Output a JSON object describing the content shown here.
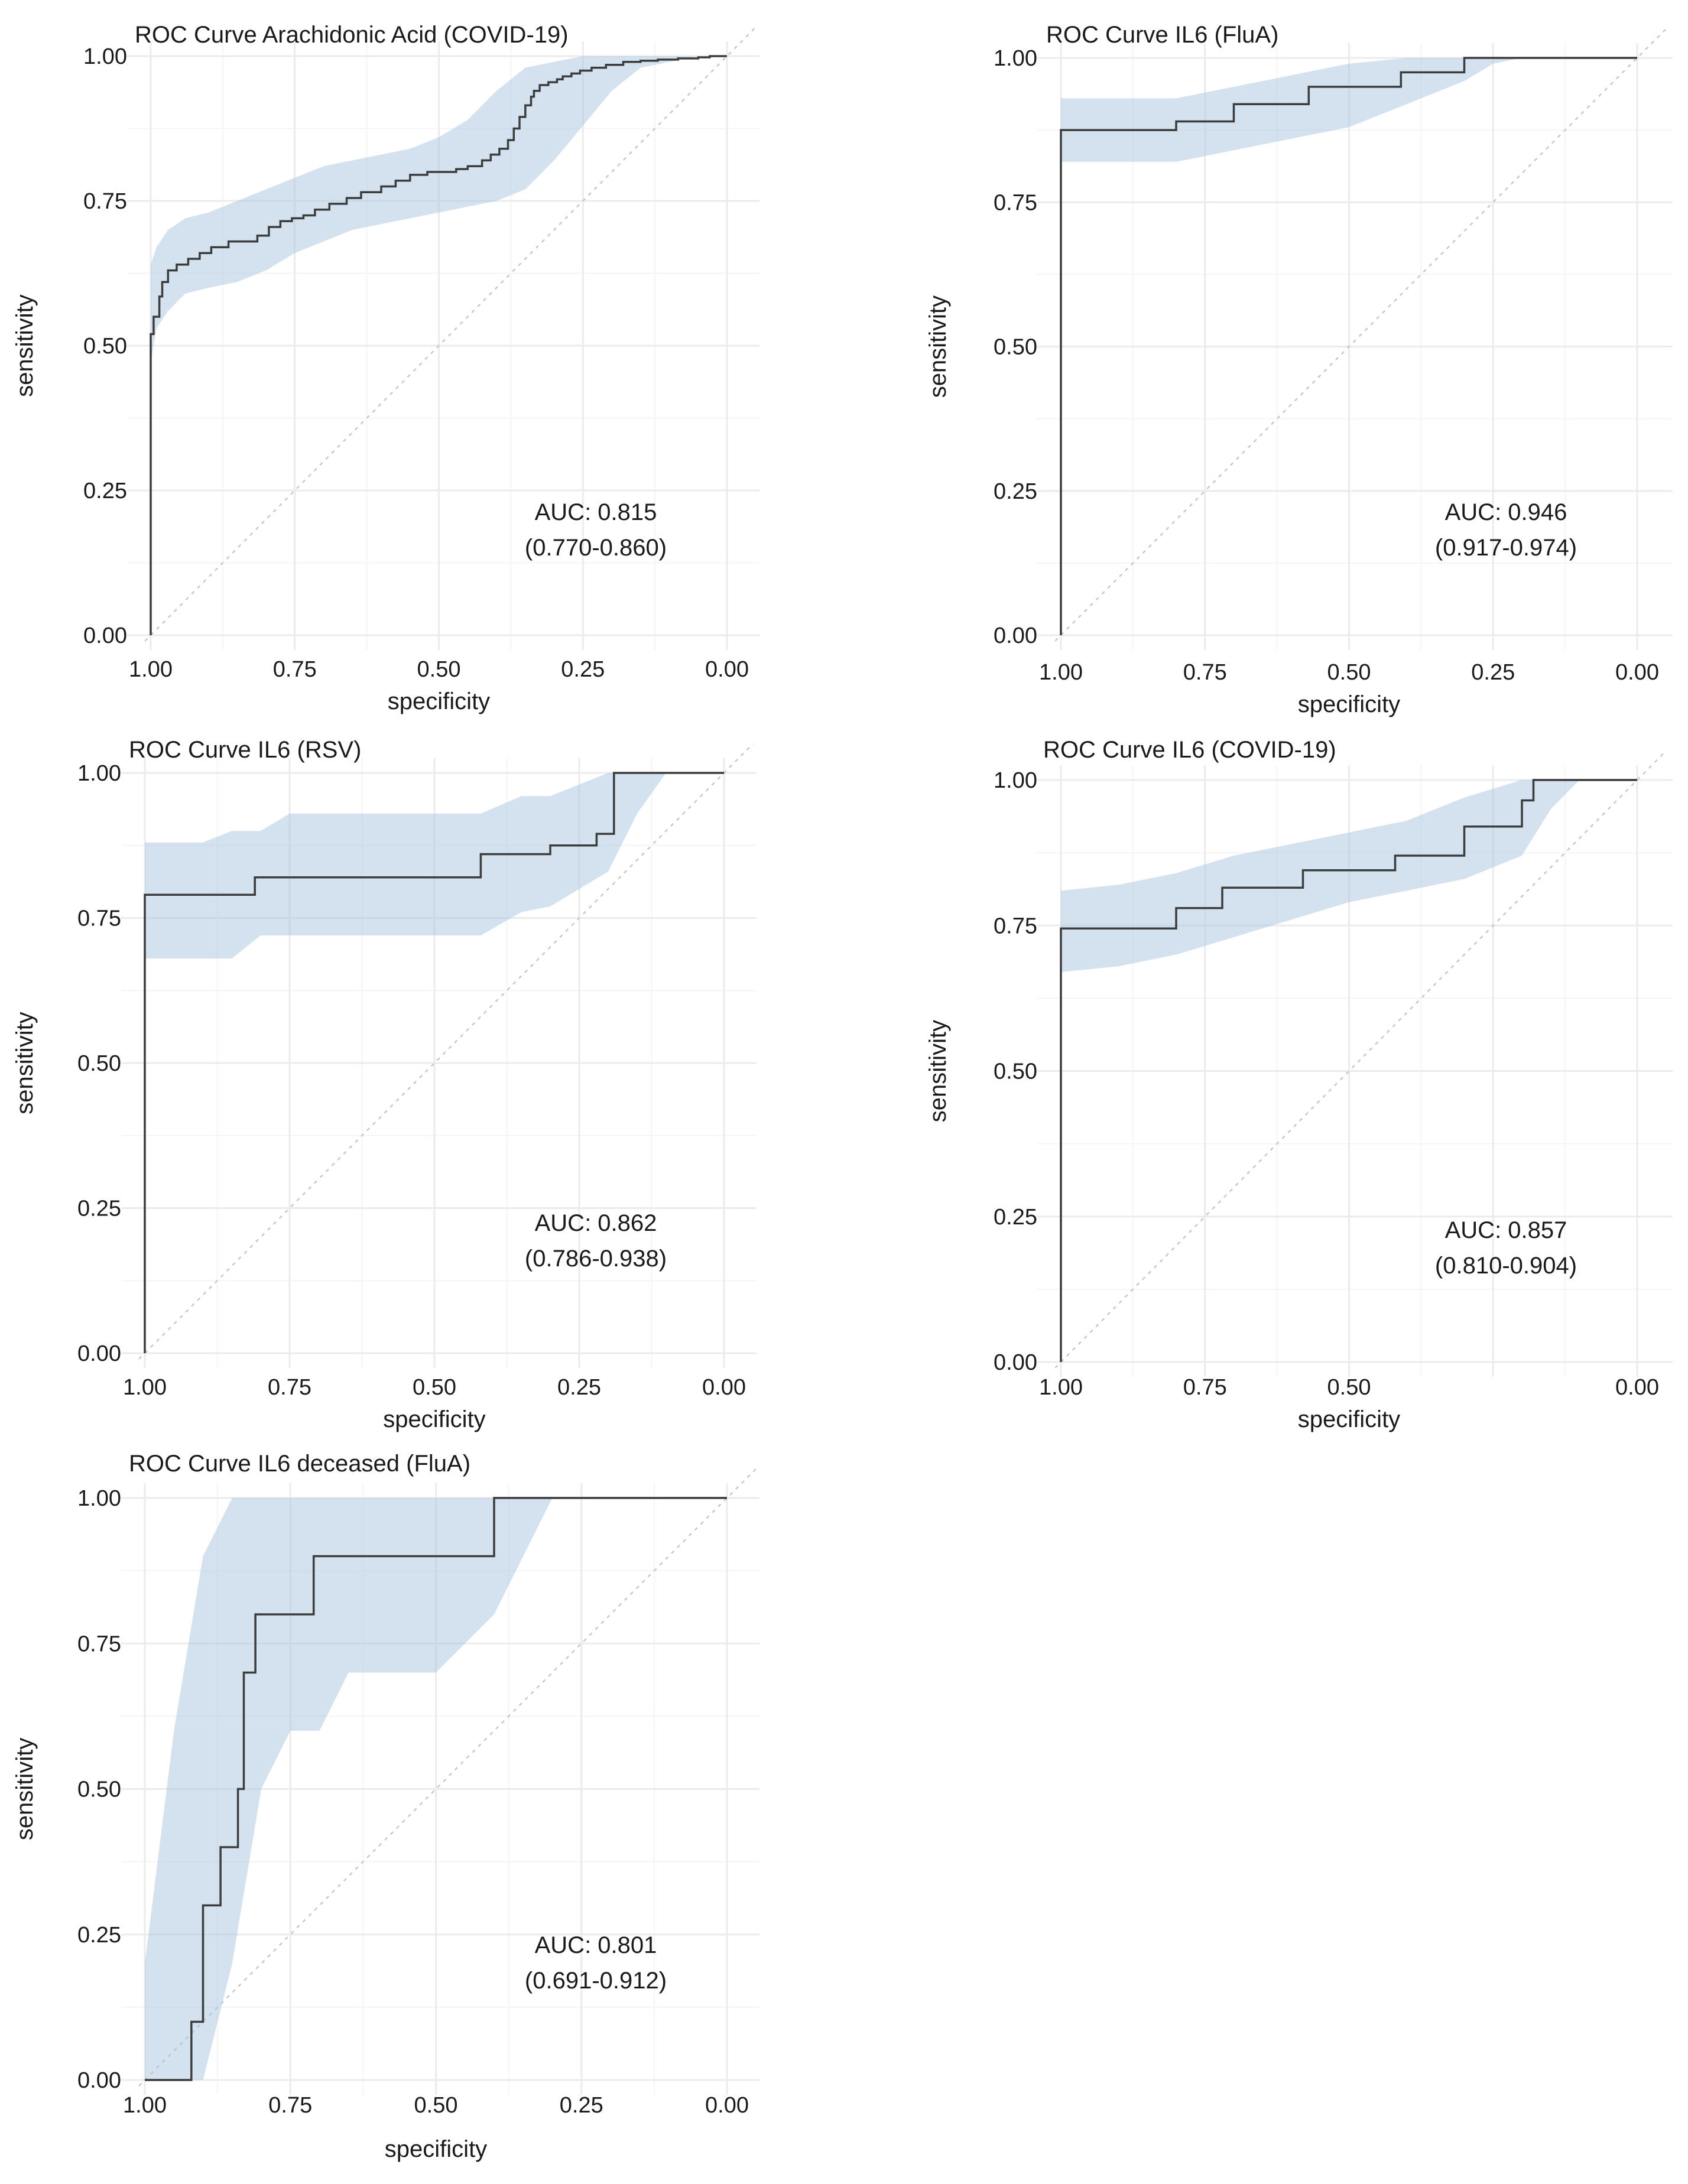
{
  "chart_data": [
    {
      "type": "line",
      "title": "ROC Curve Arachidonic  Acid (COVID-19)",
      "xlabel": "specificity",
      "ylabel": "sensitivity",
      "xlim": [
        1.0,
        0.0
      ],
      "ylim": [
        0.0,
        1.0
      ],
      "x_ticks": [
        "1.00",
        "0.75",
        "0.50",
        "0.25",
        "0.00"
      ],
      "y_ticks": [
        "0.00",
        "0.25",
        "0.50",
        "0.75",
        "1.00"
      ],
      "auc_label": "AUC: 0.815",
      "ci_label": "(0.770-0.860)",
      "roc_curve": {
        "specificity": [
          1.0,
          1.0,
          0.995,
          0.995,
          0.985,
          0.985,
          0.98,
          0.98,
          0.97,
          0.97,
          0.955,
          0.955,
          0.935,
          0.935,
          0.915,
          0.915,
          0.895,
          0.895,
          0.865,
          0.865,
          0.815,
          0.815,
          0.795,
          0.795,
          0.775,
          0.775,
          0.755,
          0.755,
          0.735,
          0.735,
          0.715,
          0.715,
          0.69,
          0.69,
          0.66,
          0.66,
          0.635,
          0.635,
          0.6,
          0.6,
          0.575,
          0.575,
          0.55,
          0.55,
          0.52,
          0.52,
          0.47,
          0.47,
          0.45,
          0.45,
          0.425,
          0.425,
          0.41,
          0.41,
          0.395,
          0.395,
          0.38,
          0.38,
          0.37,
          0.37,
          0.36,
          0.36,
          0.35,
          0.35,
          0.34,
          0.34,
          0.335,
          0.335,
          0.325,
          0.325,
          0.31,
          0.31,
          0.295,
          0.295,
          0.285,
          0.285,
          0.27,
          0.27,
          0.255,
          0.255,
          0.235,
          0.235,
          0.21,
          0.21,
          0.18,
          0.18,
          0.15,
          0.15,
          0.12,
          0.12,
          0.085,
          0.085,
          0.05,
          0.05,
          0.03,
          0.03,
          0.0
        ],
        "sensitivity": [
          0.0,
          0.52,
          0.52,
          0.55,
          0.55,
          0.585,
          0.585,
          0.61,
          0.61,
          0.63,
          0.63,
          0.64,
          0.64,
          0.65,
          0.65,
          0.66,
          0.66,
          0.67,
          0.67,
          0.68,
          0.68,
          0.69,
          0.69,
          0.705,
          0.705,
          0.715,
          0.715,
          0.72,
          0.72,
          0.725,
          0.725,
          0.735,
          0.735,
          0.745,
          0.745,
          0.755,
          0.755,
          0.765,
          0.765,
          0.775,
          0.775,
          0.785,
          0.785,
          0.795,
          0.795,
          0.8,
          0.8,
          0.805,
          0.805,
          0.81,
          0.81,
          0.82,
          0.82,
          0.83,
          0.83,
          0.84,
          0.84,
          0.855,
          0.855,
          0.875,
          0.875,
          0.895,
          0.895,
          0.915,
          0.915,
          0.93,
          0.93,
          0.94,
          0.94,
          0.95,
          0.95,
          0.955,
          0.955,
          0.96,
          0.96,
          0.965,
          0.965,
          0.97,
          0.97,
          0.975,
          0.975,
          0.98,
          0.98,
          0.985,
          0.985,
          0.99,
          0.99,
          0.992,
          0.992,
          0.994,
          0.994,
          0.996,
          0.996,
          0.998,
          0.998,
          1.0,
          1.0
        ],
        "ci_band": {
          "specificity": [
            1.0,
            0.99,
            0.97,
            0.94,
            0.9,
            0.85,
            0.8,
            0.75,
            0.7,
            0.65,
            0.6,
            0.55,
            0.5,
            0.45,
            0.4,
            0.35,
            0.3,
            0.25,
            0.2,
            0.15,
            0.1,
            0.05,
            0.0
          ],
          "lower": [
            0.47,
            0.53,
            0.56,
            0.59,
            0.6,
            0.61,
            0.63,
            0.66,
            0.68,
            0.7,
            0.71,
            0.72,
            0.73,
            0.74,
            0.75,
            0.77,
            0.82,
            0.88,
            0.94,
            0.98,
            0.99,
            1.0,
            1.0
          ],
          "upper": [
            0.64,
            0.67,
            0.7,
            0.72,
            0.73,
            0.75,
            0.77,
            0.79,
            0.81,
            0.82,
            0.83,
            0.84,
            0.86,
            0.89,
            0.94,
            0.98,
            0.99,
            1.0,
            1.0,
            1.0,
            1.0,
            1.0,
            1.0
          ]
        }
      }
    },
    {
      "type": "line",
      "title": "ROC Curve IL6 (FluA)",
      "xlabel": "specificity",
      "ylabel": "sensitivity",
      "xlim": [
        1.0,
        0.0
      ],
      "ylim": [
        0.0,
        1.0
      ],
      "x_ticks": [
        "1.00",
        "0.75",
        "0.50",
        "0.25",
        "0.00"
      ],
      "y_ticks": [
        "0.00",
        "0.25",
        "0.50",
        "0.75",
        "1.00"
      ],
      "auc_label": "AUC: 0.946",
      "ci_label": "(0.917-0.974)",
      "roc_curve": {
        "specificity": [
          1.0,
          1.0,
          0.8,
          0.8,
          0.7,
          0.7,
          0.57,
          0.57,
          0.41,
          0.41,
          0.3,
          0.3,
          0.0
        ],
        "sensitivity": [
          0.0,
          0.875,
          0.875,
          0.89,
          0.89,
          0.92,
          0.92,
          0.95,
          0.95,
          0.975,
          0.975,
          1.0,
          1.0
        ],
        "ci_band": {
          "specificity": [
            1.0,
            0.9,
            0.8,
            0.7,
            0.6,
            0.5,
            0.4,
            0.3,
            0.25,
            0.2,
            0.1,
            0.0
          ],
          "lower": [
            0.82,
            0.82,
            0.82,
            0.84,
            0.86,
            0.88,
            0.92,
            0.96,
            0.99,
            1.0,
            1.0,
            1.0
          ],
          "upper": [
            0.93,
            0.93,
            0.93,
            0.95,
            0.97,
            0.99,
            1.0,
            1.0,
            1.0,
            1.0,
            1.0,
            1.0
          ]
        }
      }
    },
    {
      "type": "line",
      "title": "ROC Curve IL6 (RSV)",
      "xlabel": "specificity",
      "ylabel": "sensitivity",
      "xlim": [
        1.0,
        0.0
      ],
      "ylim": [
        0.0,
        1.0
      ],
      "x_ticks": [
        "1.00",
        "0.75",
        "0.50",
        "0.25",
        "0.00"
      ],
      "y_ticks": [
        "0.00",
        "0.25",
        "0.50",
        "0.75",
        "1.00"
      ],
      "auc_label": "AUC: 0.862",
      "ci_label": "(0.786-0.938)",
      "roc_curve": {
        "specificity": [
          1.0,
          1.0,
          0.81,
          0.81,
          0.42,
          0.42,
          0.3,
          0.3,
          0.22,
          0.22,
          0.19,
          0.19,
          0.0
        ],
        "sensitivity": [
          0.0,
          0.79,
          0.79,
          0.82,
          0.82,
          0.86,
          0.86,
          0.875,
          0.875,
          0.895,
          0.895,
          1.0,
          1.0
        ],
        "ci_band": {
          "specificity": [
            1.0,
            0.9,
            0.85,
            0.8,
            0.75,
            0.7,
            0.6,
            0.5,
            0.42,
            0.35,
            0.3,
            0.2,
            0.15,
            0.1,
            0.0
          ],
          "lower": [
            0.68,
            0.68,
            0.68,
            0.72,
            0.72,
            0.72,
            0.72,
            0.72,
            0.72,
            0.76,
            0.77,
            0.83,
            0.93,
            1.0,
            1.0
          ],
          "upper": [
            0.88,
            0.88,
            0.9,
            0.9,
            0.93,
            0.93,
            0.93,
            0.93,
            0.93,
            0.96,
            0.96,
            1.0,
            1.0,
            1.0,
            1.0
          ]
        }
      }
    },
    {
      "type": "line",
      "title": "ROC Curve IL6 (COVID-19)",
      "xlabel": "specificity",
      "ylabel": "sensitivity",
      "xlim": [
        1.0,
        0.0
      ],
      "ylim": [
        0.0,
        1.0
      ],
      "x_ticks": [
        "1.00",
        "0.75",
        "0.50",
        "",
        "0.00"
      ],
      "y_ticks": [
        "0.00",
        "0.25",
        "0.50",
        "0.75",
        "1.00"
      ],
      "auc_label": "AUC: 0.857",
      "ci_label": "(0.810-0.904)",
      "roc_curve": {
        "specificity": [
          1.0,
          1.0,
          0.8,
          0.8,
          0.72,
          0.72,
          0.58,
          0.58,
          0.42,
          0.42,
          0.3,
          0.3,
          0.2,
          0.2,
          0.18,
          0.18,
          0.0
        ],
        "sensitivity": [
          0.0,
          0.745,
          0.745,
          0.78,
          0.78,
          0.815,
          0.815,
          0.845,
          0.845,
          0.87,
          0.87,
          0.92,
          0.92,
          0.965,
          0.965,
          1.0,
          1.0
        ],
        "ci_band": {
          "specificity": [
            1.0,
            0.9,
            0.8,
            0.7,
            0.6,
            0.5,
            0.4,
            0.3,
            0.2,
            0.15,
            0.1,
            0.05,
            0.0
          ],
          "lower": [
            0.67,
            0.68,
            0.7,
            0.73,
            0.76,
            0.79,
            0.81,
            0.83,
            0.87,
            0.95,
            1.0,
            1.0,
            1.0
          ],
          "upper": [
            0.81,
            0.82,
            0.84,
            0.87,
            0.89,
            0.91,
            0.93,
            0.97,
            1.0,
            1.0,
            1.0,
            1.0,
            1.0
          ]
        }
      }
    },
    {
      "type": "line",
      "title": "ROC Curve IL6 deceased (FluA)",
      "xlabel": "specificity",
      "ylabel": "sensitivity",
      "xlim": [
        1.0,
        0.0
      ],
      "ylim": [
        0.0,
        1.0
      ],
      "x_ticks": [
        "1.00",
        "0.75",
        "0.50",
        "0.25",
        "0.00"
      ],
      "y_ticks": [
        "0.00",
        "0.25",
        "0.50",
        "0.75",
        "1.00"
      ],
      "auc_label": "AUC: 0.801",
      "ci_label": "(0.691-0.912)",
      "roc_curve": {
        "specificity": [
          1.0,
          0.92,
          0.92,
          0.9,
          0.9,
          0.87,
          0.87,
          0.84,
          0.84,
          0.83,
          0.83,
          0.81,
          0.81,
          0.71,
          0.71,
          0.4,
          0.4,
          0.0
        ],
        "sensitivity": [
          0.0,
          0.0,
          0.1,
          0.1,
          0.3,
          0.3,
          0.4,
          0.4,
          0.5,
          0.5,
          0.7,
          0.7,
          0.8,
          0.8,
          0.9,
          0.9,
          1.0,
          1.0
        ],
        "ci_band": {
          "specificity": [
            1.0,
            0.95,
            0.9,
            0.85,
            0.8,
            0.75,
            0.7,
            0.65,
            0.6,
            0.5,
            0.4,
            0.3,
            0.2,
            0.0
          ],
          "lower": [
            0.0,
            0.0,
            0.0,
            0.2,
            0.5,
            0.6,
            0.6,
            0.7,
            0.7,
            0.7,
            0.8,
            1.0,
            1.0,
            1.0
          ],
          "upper": [
            0.2,
            0.6,
            0.9,
            1.0,
            1.0,
            1.0,
            1.0,
            1.0,
            1.0,
            1.0,
            1.0,
            1.0,
            1.0,
            1.0
          ]
        }
      }
    }
  ]
}
